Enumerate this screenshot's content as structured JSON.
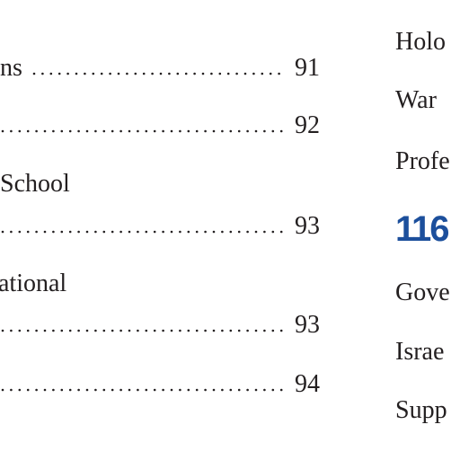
{
  "left_column": {
    "entries": [
      {
        "title": "ns",
        "page": "91"
      },
      {
        "page": "92"
      },
      {
        "title": "School",
        "page": "93"
      },
      {
        "title": "ational",
        "page": "93"
      },
      {
        "page": "94"
      }
    ]
  },
  "right_column": {
    "items_before": [
      "Holo",
      "War",
      "Profe"
    ],
    "section_number": "116",
    "items_after": [
      "Gove",
      "Israe",
      "Supp"
    ]
  }
}
